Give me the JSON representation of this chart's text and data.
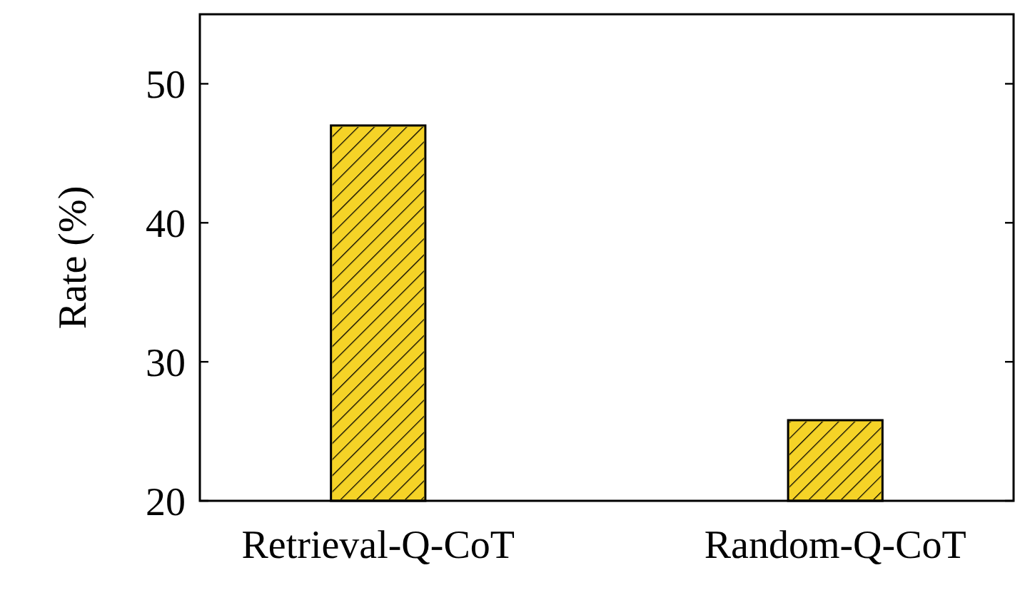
{
  "chart_data": {
    "type": "bar",
    "ylabel": "Rate (%)",
    "categories": [
      "Retrieval-Q-CoT",
      "Random-Q-CoT"
    ],
    "values": [
      47,
      25.8
    ],
    "color": "#f5d327",
    "ylim": [
      20,
      55
    ],
    "yticks": [
      20,
      30,
      40,
      50
    ],
    "grid": false
  }
}
